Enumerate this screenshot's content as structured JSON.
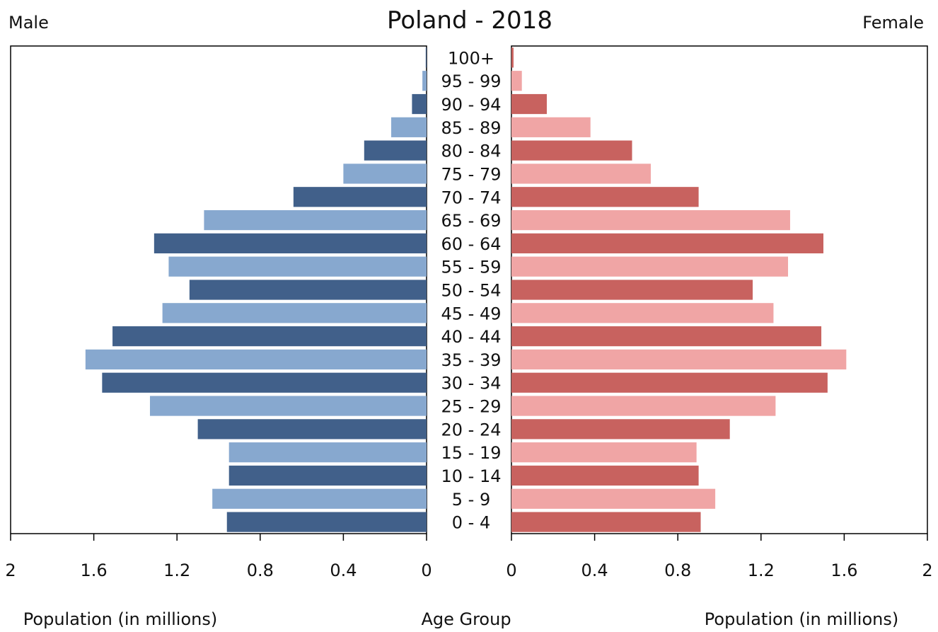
{
  "chart_data": {
    "type": "bar",
    "subtype": "population-pyramid",
    "title": "Poland - 2018",
    "left_label": "Male",
    "right_label": "Female",
    "xlabel_left": "Population (in millions)",
    "xlabel_center": "Age Group",
    "xlabel_right": "Population (in millions)",
    "xlim": [
      0,
      2
    ],
    "xticks": [
      0,
      0.4,
      0.8,
      1.2,
      1.6,
      2
    ],
    "xtick_labels": [
      "0",
      "0.4",
      "0.8",
      "1.2",
      "1.6",
      "2"
    ],
    "categories": [
      "0 - 4",
      "5 - 9",
      "10 - 14",
      "15 - 19",
      "20 - 24",
      "25 - 29",
      "30 - 34",
      "35 - 39",
      "40 - 44",
      "45 - 49",
      "50 - 54",
      "55 - 59",
      "60 - 64",
      "65 - 69",
      "70 - 74",
      "75 - 79",
      "80 - 84",
      "85 - 89",
      "90 - 94",
      "95 - 99",
      "100+"
    ],
    "series": [
      {
        "name": "Male",
        "colors": [
          "#41608a",
          "#87a8cf"
        ],
        "values": [
          0.96,
          1.03,
          0.95,
          0.95,
          1.1,
          1.33,
          1.56,
          1.64,
          1.51,
          1.27,
          1.14,
          1.24,
          1.31,
          1.07,
          0.64,
          0.4,
          0.3,
          0.17,
          0.07,
          0.02,
          0.004
        ]
      },
      {
        "name": "Female",
        "colors": [
          "#c8625f",
          "#f0a5a5"
        ],
        "values": [
          0.91,
          0.98,
          0.9,
          0.89,
          1.05,
          1.27,
          1.52,
          1.61,
          1.49,
          1.26,
          1.16,
          1.33,
          1.5,
          1.34,
          0.9,
          0.67,
          0.58,
          0.38,
          0.17,
          0.05,
          0.01
        ]
      }
    ]
  }
}
